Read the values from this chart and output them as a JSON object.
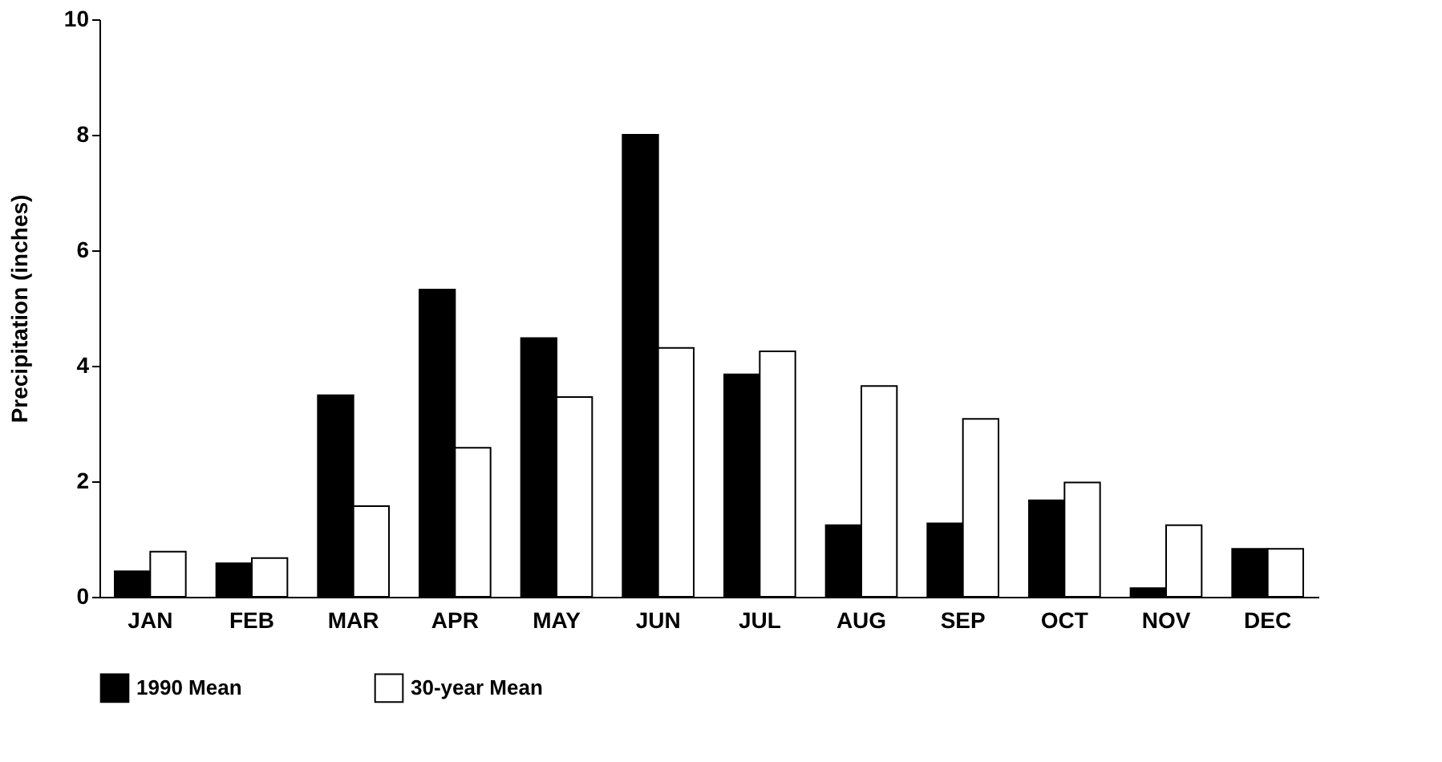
{
  "chart_data": {
    "type": "bar",
    "ylabel": "Precipitation (inches)",
    "categories": [
      "JAN",
      "FEB",
      "MAR",
      "APR",
      "MAY",
      "JUN",
      "JUL",
      "AUG",
      "SEP",
      "OCT",
      "NOV",
      "DEC"
    ],
    "series": [
      {
        "name": "1990 Mean",
        "color": "#000000",
        "values": [
          0.44,
          0.58,
          3.49,
          5.32,
          4.48,
          8.0,
          3.85,
          1.24,
          1.27,
          1.67,
          0.15,
          0.83
        ]
      },
      {
        "name": "30-year Mean",
        "color": "#ffffff",
        "values": [
          0.78,
          0.67,
          1.57,
          2.58,
          3.46,
          4.31,
          4.25,
          3.65,
          3.08,
          1.98,
          1.24,
          0.83
        ]
      }
    ],
    "ylim": [
      0,
      10
    ],
    "yticks": [
      0,
      2,
      4,
      6,
      8,
      10
    ],
    "grid": false,
    "legend": "bottom"
  }
}
